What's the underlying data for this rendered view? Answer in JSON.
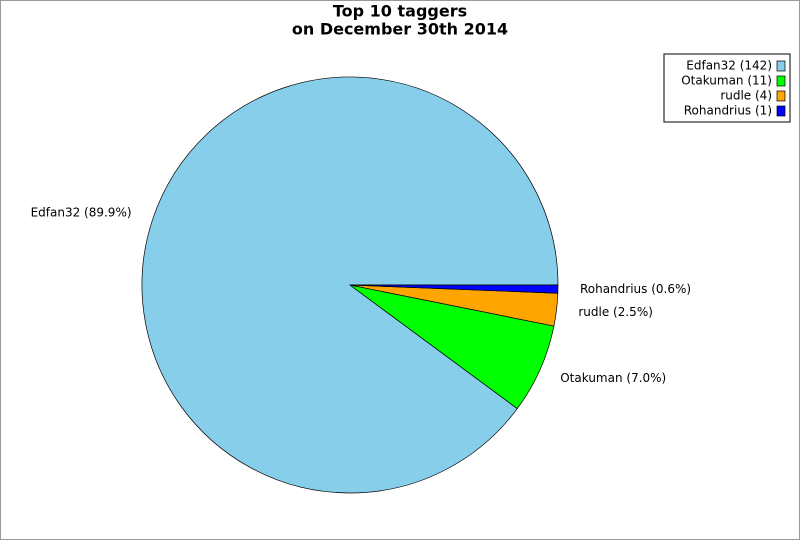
{
  "chart_data": {
    "type": "pie",
    "title": "Top 10 taggers",
    "subtitle": "on December 30th 2014",
    "values": [
      142,
      11,
      4,
      1
    ],
    "colors": [
      "#87ceeb",
      "#00ff00",
      "#ffa500",
      "#0000ff"
    ],
    "legend_labels": [
      "Edfan32 (142)",
      "Otakuman (11)",
      "rudle (4)",
      "Rohandrius (1)"
    ],
    "value_labels": [
      "Edfan32 (89.9%)",
      "Otakuman (7.0%)",
      "rudle (2.5%)",
      "Rohandrius (0.6%)"
    ],
    "legend": "upper right"
  }
}
